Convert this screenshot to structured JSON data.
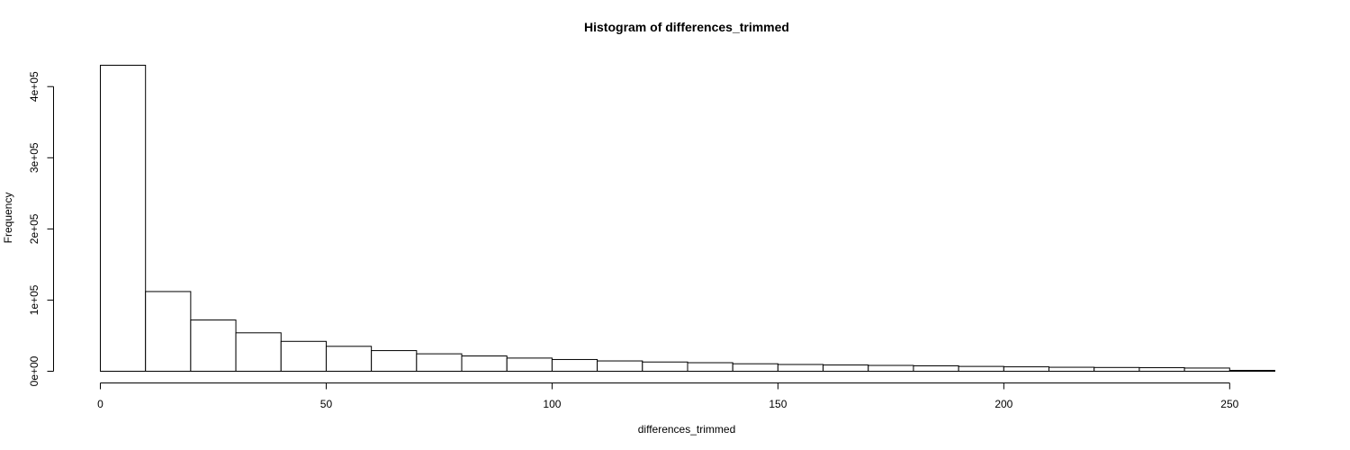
{
  "chart_data": {
    "type": "bar",
    "title": "Histogram of differences_trimmed",
    "xlabel": "differences_trimmed",
    "ylabel": "Frequency",
    "bin_edges": [
      0,
      10,
      20,
      30,
      40,
      50,
      60,
      70,
      80,
      90,
      100,
      110,
      120,
      130,
      140,
      150,
      160,
      170,
      180,
      190,
      200,
      210,
      220,
      230,
      240,
      250,
      260
    ],
    "values": [
      430000,
      112000,
      72000,
      54000,
      42000,
      35000,
      29000,
      24500,
      21500,
      18500,
      16500,
      14500,
      13000,
      12000,
      10500,
      9500,
      8800,
      8200,
      7600,
      6800,
      6200,
      5600,
      5300,
      5000,
      4500,
      1200
    ],
    "xlim": [
      0,
      260
    ],
    "ylim": [
      0,
      430000
    ],
    "x_ticks": [
      0,
      50,
      100,
      150,
      200,
      250
    ],
    "x_tick_labels": [
      "0",
      "50",
      "100",
      "150",
      "200",
      "250"
    ],
    "y_ticks": [
      0,
      100000,
      200000,
      300000,
      400000
    ],
    "y_tick_labels": [
      "0e+00",
      "1e+05",
      "2e+05",
      "3e+05",
      "4e+05"
    ],
    "grid": false,
    "legend": "none",
    "bar_fill": "#ffffff",
    "bar_stroke": "#000000"
  }
}
